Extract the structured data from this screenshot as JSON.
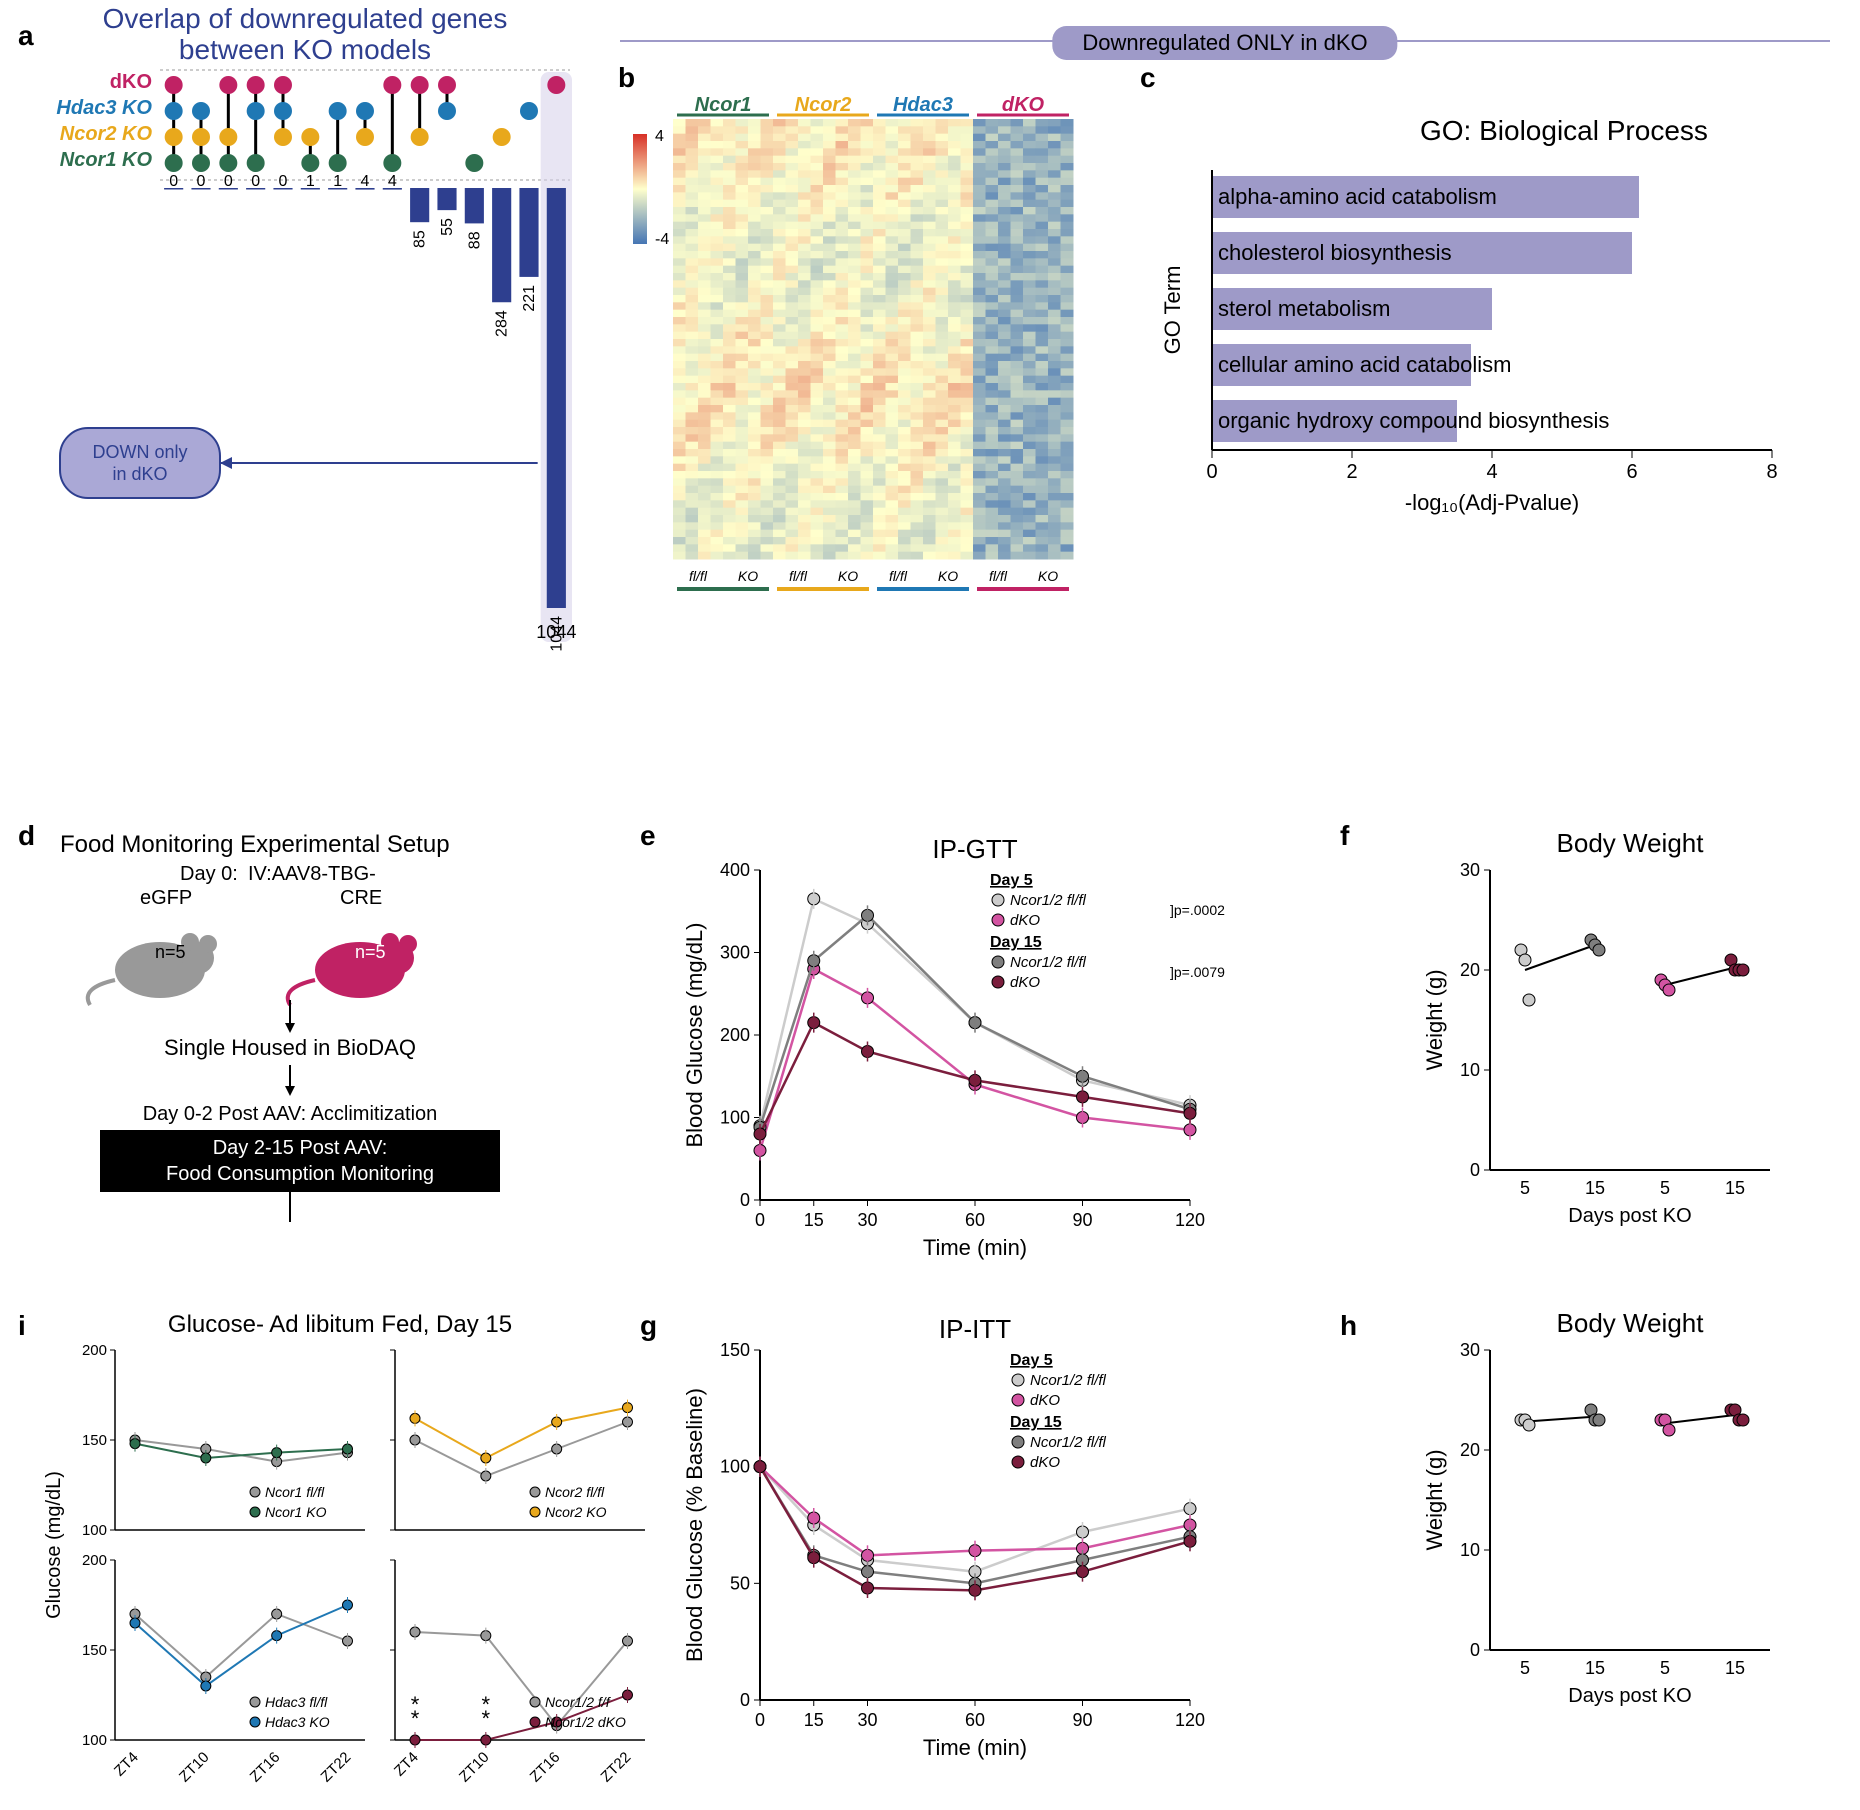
{
  "colors": {
    "dKO": "#c02264",
    "Hdac3": "#1f78b4",
    "Ncor2": "#e8a81c",
    "Ncor1": "#2d6e4e",
    "gray_light": "#cccccc",
    "gray_dark": "#7f7f7f",
    "bar_blue": "#2e3f8f",
    "lavender": "#aaa8d6",
    "purple_bar": "#9e9ac8",
    "heatmap_lo": "#4575b4",
    "heatmap_hi": "#d73027"
  },
  "panelA": {
    "label": "a",
    "title": "Overlap of downregulated genes between KO models",
    "models": [
      "dKO",
      "Hdac3 KO",
      "Ncor2 KO",
      "Ncor1 KO"
    ],
    "callout": "DOWN only in dKO",
    "intersections": [
      {
        "sets": [
          0,
          1,
          2,
          3
        ],
        "val": 0
      },
      {
        "sets": [
          1,
          2,
          3
        ],
        "val": 0
      },
      {
        "sets": [
          0,
          2,
          3
        ],
        "val": 0
      },
      {
        "sets": [
          0,
          1,
          3
        ],
        "val": 0
      },
      {
        "sets": [
          0,
          1,
          2
        ],
        "val": 0
      },
      {
        "sets": [
          2,
          3
        ],
        "val": 1
      },
      {
        "sets": [
          1,
          3
        ],
        "val": 1
      },
      {
        "sets": [
          1,
          2
        ],
        "val": 4
      },
      {
        "sets": [
          0,
          3
        ],
        "val": 4
      },
      {
        "sets": [
          0,
          2
        ],
        "val": 85
      },
      {
        "sets": [
          0,
          1
        ],
        "val": 55
      },
      {
        "sets": [
          3
        ],
        "val": 88
      },
      {
        "sets": [
          2
        ],
        "val": 284
      },
      {
        "sets": [
          1
        ],
        "val": 221
      },
      {
        "sets": [
          0
        ],
        "val": 1044
      }
    ],
    "ymax": 1044
  },
  "panelB": {
    "label": "b",
    "banner": "Downregulated ONLY in dKO",
    "top_labels": [
      "Ncor1",
      "Ncor2",
      "Hdac3",
      "dKO"
    ],
    "bottom_labels": [
      "fl/fl",
      "KO",
      "fl/fl",
      "KO",
      "fl/fl",
      "KO",
      "fl/fl",
      "KO"
    ],
    "scale": [
      4,
      -4
    ]
  },
  "panelC": {
    "label": "c",
    "title": "GO: Biological Process",
    "ylabel": "GO Term",
    "xlabel": "-log₁₀(Adj-Pvalue)",
    "xmax": 8,
    "xtick": 2,
    "terms": [
      {
        "name": "alpha-amino acid catabolism",
        "val": 6.1
      },
      {
        "name": "cholesterol biosynthesis",
        "val": 6.0
      },
      {
        "name": "sterol metabolism",
        "val": 4.0
      },
      {
        "name": "cellular amino acid catabolism",
        "val": 3.7
      },
      {
        "name": "organic hydroxy compound biosynthesis",
        "val": 3.5
      }
    ]
  },
  "panelD": {
    "label": "d",
    "title": "Food Monitoring Experimental Setup",
    "day0": "Day 0:",
    "egfp": "IV:AAV8-TBG-eGFP",
    "cre": "CRE",
    "n": "n=5",
    "step1": "Single Housed in BioDAQ",
    "step2a": "Day 0-2 Post AAV: Acclimitization",
    "step2b": "Day 2-15 Post AAV:",
    "step2c": "Food Consumption Monitoring"
  },
  "panelE": {
    "label": "e",
    "title": "IP-GTT",
    "ylabel": "Blood Glucose (mg/dL)",
    "xlabel": "Time (min)",
    "ylim": [
      0,
      400
    ],
    "ytick": 100,
    "xticks": [
      0,
      15,
      30,
      60,
      90,
      120
    ],
    "legend_day5": "Day 5",
    "legend_day15": "Day 15",
    "legend_fl": "Ncor1/2 fl/fl",
    "legend_dko": "dKO",
    "p1": "p=.0002",
    "p2": "p=.0079",
    "series": {
      "d5_fl": {
        "color": "#cccccc",
        "y": [
          90,
          365,
          335,
          215,
          145,
          115
        ]
      },
      "d5_dko": {
        "color": "#d354a2",
        "y": [
          60,
          280,
          245,
          140,
          100,
          85
        ]
      },
      "d15_fl": {
        "color": "#7f7f7f",
        "y": [
          88,
          290,
          345,
          215,
          150,
          110
        ]
      },
      "d15_dko": {
        "color": "#7b1e3d",
        "y": [
          80,
          215,
          180,
          145,
          125,
          105
        ]
      }
    }
  },
  "panelF": {
    "label": "f",
    "title": "Body Weight",
    "ylabel": "Weight (g)",
    "xlabel": "Days post KO",
    "ylim": [
      0,
      30
    ],
    "ytick": 10,
    "xticks": [
      "5",
      "15",
      "5",
      "15"
    ],
    "groups": [
      {
        "x": 0,
        "color": "#cccccc",
        "vals": [
          22,
          21,
          17
        ]
      },
      {
        "x": 1,
        "color": "#7f7f7f",
        "vals": [
          23,
          22.5,
          22
        ]
      },
      {
        "x": 2,
        "color": "#d354a2",
        "vals": [
          19,
          18.5,
          18
        ]
      },
      {
        "x": 3,
        "color": "#7b1e3d",
        "vals": [
          21,
          20,
          20,
          20
        ]
      }
    ]
  },
  "panelG": {
    "label": "g",
    "title": "IP-ITT",
    "ylabel": "Blood Glucose (% Baseline)",
    "xlabel": "Time (min)",
    "ylim": [
      0,
      150
    ],
    "ytick": 50,
    "xticks": [
      0,
      15,
      30,
      60,
      90,
      120
    ],
    "series": {
      "d5_fl": {
        "color": "#cccccc",
        "y": [
          100,
          75,
          60,
          55,
          72,
          82
        ]
      },
      "d5_dko": {
        "color": "#d354a2",
        "y": [
          100,
          78,
          62,
          64,
          65,
          75
        ]
      },
      "d15_fl": {
        "color": "#7f7f7f",
        "y": [
          100,
          62,
          55,
          50,
          60,
          70
        ]
      },
      "d15_dko": {
        "color": "#7b1e3d",
        "y": [
          100,
          61,
          48,
          47,
          55,
          68
        ]
      }
    }
  },
  "panelH": {
    "label": "h",
    "title": "Body Weight",
    "ylabel": "Weight (g)",
    "xlabel": "Days post KO",
    "ylim": [
      0,
      30
    ],
    "ytick": 10,
    "xticks": [
      "5",
      "15",
      "5",
      "15"
    ],
    "groups": [
      {
        "x": 0,
        "color": "#cccccc",
        "vals": [
          23,
          23,
          22.5
        ]
      },
      {
        "x": 1,
        "color": "#7f7f7f",
        "vals": [
          24,
          23,
          23
        ]
      },
      {
        "x": 2,
        "color": "#d354a2",
        "vals": [
          23,
          23,
          22
        ]
      },
      {
        "x": 3,
        "color": "#7b1e3d",
        "vals": [
          24,
          24,
          23,
          23
        ]
      }
    ]
  },
  "panelI": {
    "label": "i",
    "title": "Glucose- Ad libitum Fed, Day 15",
    "ylabel": "Glucose (mg/dL)",
    "ylim": [
      100,
      200
    ],
    "ytick": 50,
    "xticks": [
      "ZT4",
      "ZT10",
      "ZT16",
      "ZT22"
    ],
    "sub": [
      {
        "fl": "Ncor1 fl/fl",
        "ko": "Ncor1 KO",
        "col": "#2d6e4e",
        "ko_y": [
          148,
          140,
          143,
          145
        ],
        "fl_y": [
          150,
          145,
          138,
          143
        ]
      },
      {
        "fl": "Ncor2 fl/fl",
        "ko": "Ncor2 KO",
        "col": "#e8a81c",
        "ko_y": [
          162,
          140,
          160,
          168
        ],
        "fl_y": [
          150,
          130,
          145,
          160
        ]
      },
      {
        "fl": "Hdac3 fl/fl",
        "ko": "Hdac3 KO",
        "col": "#1f78b4",
        "ko_y": [
          165,
          130,
          158,
          175
        ],
        "fl_y": [
          170,
          135,
          170,
          155
        ]
      },
      {
        "fl": "Ncor1/2 f/f",
        "ko": "Ncor1/2 dKO",
        "col": "#7b1e3d",
        "ko_y": [
          100,
          100,
          110,
          125
        ],
        "fl_y": [
          160,
          158,
          108,
          155
        ],
        "stars": [
          "**",
          "**"
        ]
      }
    ]
  }
}
